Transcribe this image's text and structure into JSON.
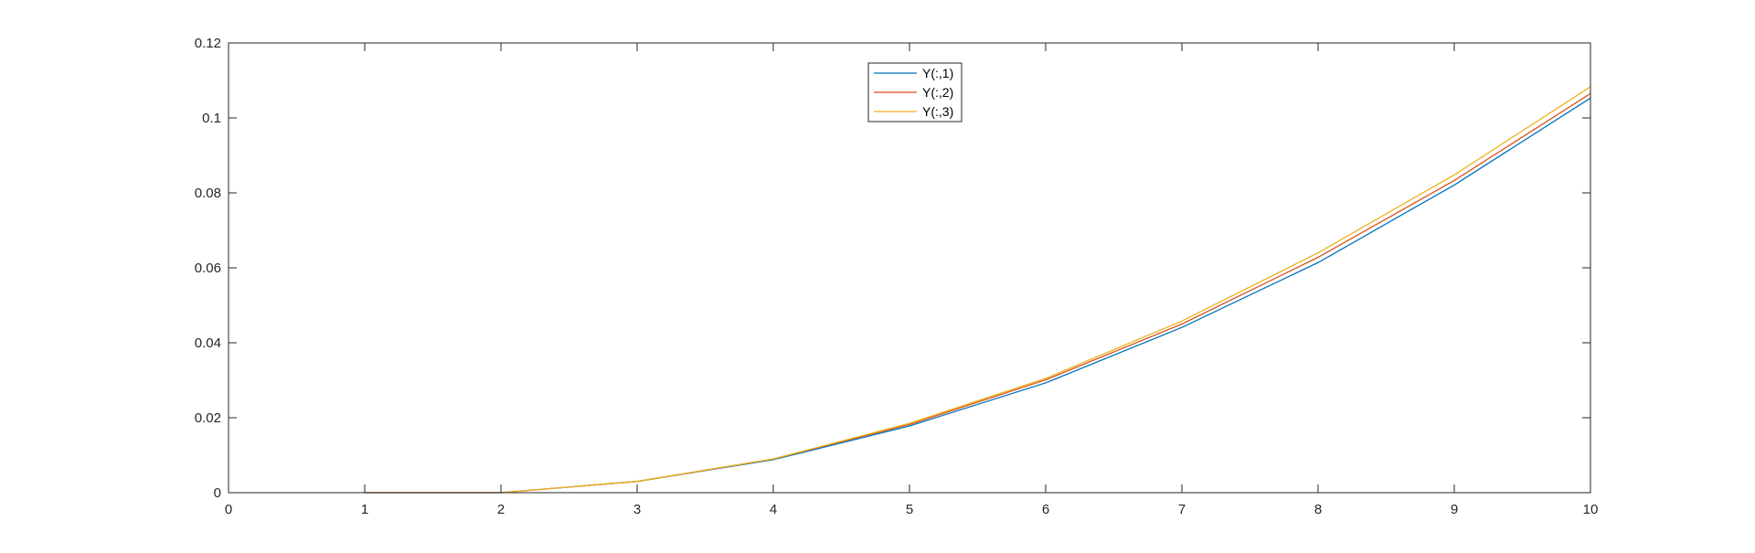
{
  "chart_data": {
    "type": "line",
    "title": "",
    "xlabel": "",
    "ylabel": "",
    "xlim": [
      0,
      10
    ],
    "ylim": [
      0,
      0.12
    ],
    "x_ticks": [
      0,
      1,
      2,
      3,
      4,
      5,
      6,
      7,
      8,
      9,
      10
    ],
    "x_tick_labels": [
      "0",
      "1",
      "2",
      "3",
      "4",
      "5",
      "6",
      "7",
      "8",
      "9",
      "10"
    ],
    "y_ticks": [
      0,
      0.02,
      0.04,
      0.06,
      0.08,
      0.1,
      0.12
    ],
    "y_tick_labels": [
      "0",
      "0.02",
      "0.04",
      "0.06",
      "0.08",
      "0.1",
      "0.12"
    ],
    "grid": false,
    "legend_position": "top-center",
    "x": [
      1,
      2,
      3,
      4,
      5,
      6,
      7,
      8,
      9,
      10
    ],
    "series": [
      {
        "name": "Y(:,1)",
        "color": "#0072BD",
        "values": [
          0,
          0,
          0.003,
          0.0088,
          0.0178,
          0.0293,
          0.0441,
          0.0614,
          0.0821,
          0.1053
        ]
      },
      {
        "name": "Y(:,2)",
        "color": "#D95319",
        "values": [
          0,
          0,
          0.003,
          0.009,
          0.0182,
          0.0301,
          0.045,
          0.0628,
          0.0833,
          0.1065
        ]
      },
      {
        "name": "Y(:,3)",
        "color": "#EDB120",
        "values": [
          0,
          0,
          0.003,
          0.009,
          0.0185,
          0.0305,
          0.0458,
          0.064,
          0.0848,
          0.1083
        ]
      }
    ]
  }
}
